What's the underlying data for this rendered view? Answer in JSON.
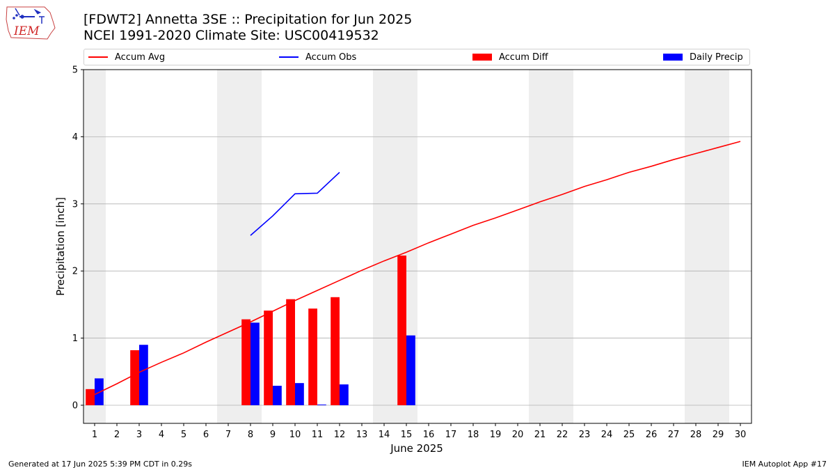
{
  "header": {
    "title_line1": "[FDWT2] Annetta 3SE :: Precipitation for Jun 2025",
    "title_line2": "NCEI 1991-2020 Climate Site: USC00419532"
  },
  "logo": {
    "text": "IEM",
    "icon": "iem-iowa-state-logo"
  },
  "legend": [
    {
      "label": "Accum Avg",
      "kind": "line",
      "color": "#ff0000"
    },
    {
      "label": "Accum Obs",
      "kind": "line",
      "color": "#0000ff"
    },
    {
      "label": "Accum Diff",
      "kind": "bar",
      "color": "#ff0000"
    },
    {
      "label": "Daily Precip",
      "kind": "bar",
      "color": "#0000ff"
    }
  ],
  "footer": {
    "left": "Generated at 17 Jun 2025 5:39 PM CDT in 0.29s",
    "right": "IEM Autoplot App #17"
  },
  "chart_data": {
    "type": "bar",
    "xlabel": "June 2025",
    "ylabel": "Precipitation [inch]",
    "ylim": [
      -0.27,
      5
    ],
    "xlim": [
      0.5,
      30.5
    ],
    "yticks": [
      0,
      1,
      2,
      3,
      4,
      5
    ],
    "xticks": [
      1,
      2,
      3,
      4,
      5,
      6,
      7,
      8,
      9,
      10,
      11,
      12,
      13,
      14,
      15,
      16,
      17,
      18,
      19,
      20,
      21,
      22,
      23,
      24,
      25,
      26,
      27,
      28,
      29,
      30
    ],
    "grid": "horizontal",
    "weekend_shading": [
      1,
      7,
      8,
      14,
      15,
      21,
      22,
      28,
      29
    ],
    "series": [
      {
        "name": "Accum Avg",
        "type": "line",
        "color": "#ff0000",
        "x": [
          1,
          2,
          3,
          4,
          5,
          6,
          7,
          8,
          9,
          10,
          11,
          12,
          13,
          14,
          15,
          16,
          17,
          18,
          19,
          20,
          21,
          22,
          23,
          24,
          25,
          26,
          27,
          28,
          29,
          30
        ],
        "values": [
          0.16,
          0.32,
          0.49,
          0.64,
          0.78,
          0.94,
          1.09,
          1.24,
          1.4,
          1.56,
          1.71,
          1.86,
          2.01,
          2.15,
          2.28,
          2.42,
          2.55,
          2.68,
          2.79,
          2.91,
          3.03,
          3.14,
          3.26,
          3.36,
          3.47,
          3.56,
          3.66,
          3.75,
          3.84,
          3.93
        ]
      },
      {
        "name": "Accum Obs",
        "type": "line",
        "color": "#0000ff",
        "x": [
          8,
          9,
          10,
          11,
          12
        ],
        "values": [
          2.53,
          2.82,
          3.15,
          3.16,
          3.47
        ]
      },
      {
        "name": "Accum Diff",
        "type": "bar",
        "color": "#ff0000",
        "x": [
          1,
          3,
          8,
          9,
          10,
          11,
          12,
          15
        ],
        "values": [
          0.24,
          0.82,
          1.28,
          1.41,
          1.58,
          1.44,
          1.61,
          2.23
        ]
      },
      {
        "name": "Daily Precip",
        "type": "bar",
        "color": "#0000ff",
        "x": [
          1,
          3,
          8,
          9,
          10,
          11,
          12,
          15
        ],
        "values": [
          0.4,
          0.9,
          1.23,
          0.29,
          0.33,
          0.01,
          0.31,
          1.04
        ]
      }
    ]
  }
}
